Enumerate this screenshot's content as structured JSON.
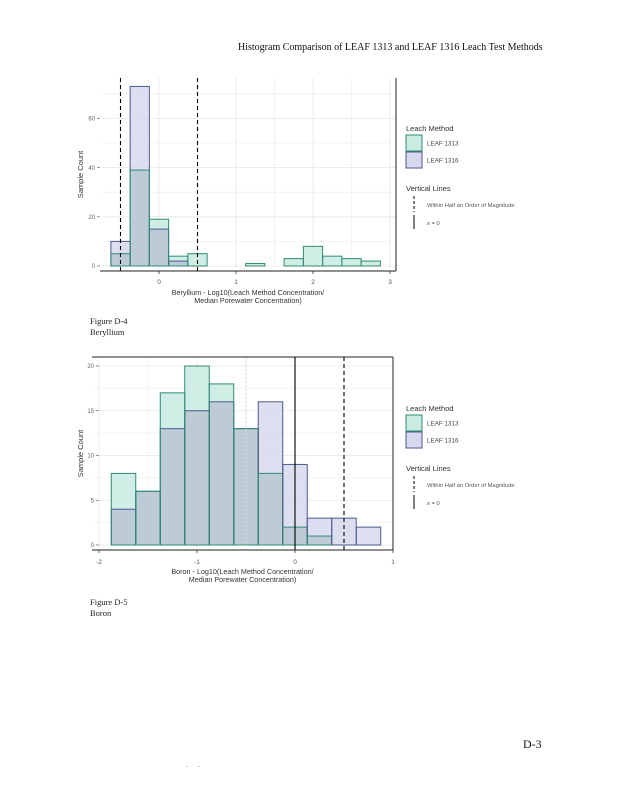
{
  "page": {
    "header": "Histogram Comparison of LEAF 1313 and LEAF 1316 Leach Test Methods",
    "page_number": "D-3",
    "footer_dots": ". ."
  },
  "figures": [
    {
      "label": "Figure D-4",
      "name": "Beryllium"
    },
    {
      "label": "Figure D-5",
      "name": "Boron"
    }
  ],
  "colors": {
    "leaf1313_fill": "#c9ebe2",
    "leaf1313_stroke": "#2e8b74",
    "leaf1316_fill": "#d8d8ee",
    "leaf1316_stroke": "#4a5a8a",
    "overlap_fill": "#bccbd6"
  },
  "chart_data": [
    {
      "type": "bar",
      "subtype": "overlaid-histogram",
      "title": "",
      "xlabel": "Beryllium - Log10(Leach Method Concentration/\nMedian Porewater Concentration)",
      "xlabel_lines": [
        "Beryllium - Log10(Leach Method Concentration/",
        "Median Porewater Concentration)"
      ],
      "ylabel": "Sample Count",
      "xlim": [
        -0.75,
        3.0
      ],
      "ylim": [
        0,
        75
      ],
      "xticks": [
        0,
        1,
        2,
        3
      ],
      "xtick_labels": [
        "0",
        "1",
        "2",
        "3"
      ],
      "yticks": [
        0,
        20,
        40,
        60
      ],
      "ytick_labels": [
        "0",
        "20",
        "40",
        "60"
      ],
      "grid": true,
      "bin_width": 0.25,
      "bin_starts": [
        -0.625,
        -0.375,
        -0.125,
        0.125,
        0.375,
        0.625,
        0.875,
        1.125,
        1.375,
        1.625,
        1.875,
        2.125,
        2.375,
        2.625
      ],
      "series": [
        {
          "name": "LEAF 1313",
          "values": [
            5,
            39,
            19,
            4,
            5,
            0,
            0,
            1,
            0,
            3,
            8,
            4,
            3,
            2
          ]
        },
        {
          "name": "LEAF 1316",
          "values": [
            10,
            73,
            15,
            2,
            0,
            0,
            0,
            0,
            0,
            0,
            0,
            0,
            0,
            0
          ]
        }
      ],
      "vlines": [
        {
          "x": -0.5,
          "style": "dashed"
        },
        {
          "x": 0.5,
          "style": "dashed"
        }
      ],
      "legend": {
        "position": "right",
        "fill_title": "Leach Method",
        "fill_items": [
          "LEAF 1313",
          "LEAF 1316"
        ],
        "line_title": "Vertical Lines",
        "line_items": [
          "Within Half an Order of Magnitude",
          "x = 0"
        ]
      }
    },
    {
      "type": "bar",
      "subtype": "overlaid-histogram",
      "title": "",
      "xlabel": "Boron - Log10(Leach Method Concentration/\nMedian Porewater Concentration)",
      "xlabel_lines": [
        "Boron - Log10(Leach Method Concentration/",
        "Median Porewater Concentration)"
      ],
      "ylabel": "Sample Count",
      "xlim": [
        -2.0,
        1.0
      ],
      "ylim": [
        0,
        20.5
      ],
      "xticks": [
        -2,
        -1,
        0,
        1
      ],
      "xtick_labels": [
        "-2",
        "-1",
        "0",
        "1"
      ],
      "yticks": [
        0,
        5,
        10,
        15,
        20
      ],
      "ytick_labels": [
        "0",
        "5",
        "10",
        "15",
        "20"
      ],
      "grid": true,
      "bin_width": 0.25,
      "bin_starts": [
        -1.875,
        -1.625,
        -1.375,
        -1.125,
        -0.875,
        -0.625,
        -0.375,
        -0.125,
        0.125,
        0.375,
        0.625
      ],
      "series": [
        {
          "name": "LEAF 1313",
          "values": [
            8,
            6,
            17,
            20,
            18,
            13,
            8,
            2,
            1,
            0,
            0
          ]
        },
        {
          "name": "LEAF 1316",
          "values": [
            4,
            6,
            13,
            15,
            16,
            13,
            16,
            9,
            3,
            3,
            2
          ]
        }
      ],
      "vlines": [
        {
          "x": -0.5,
          "style": "faint-dotted"
        },
        {
          "x": 0,
          "style": "solid"
        },
        {
          "x": 0.5,
          "style": "dashed"
        }
      ],
      "legend": {
        "position": "right",
        "fill_title": "Leach Method",
        "fill_items": [
          "LEAF 1313",
          "LEAF 1316"
        ],
        "line_title": "Vertical Lines",
        "line_items": [
          "Within Half an Order of Magnitude",
          "x = 0"
        ]
      }
    }
  ]
}
